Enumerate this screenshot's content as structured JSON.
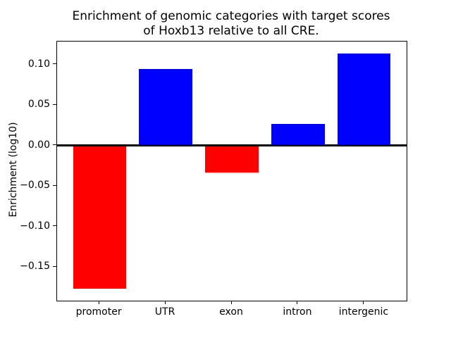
{
  "figure": {
    "title_lines": [
      "Enrichment of genomic categories with target scores",
      "of Hoxb13 relative to all CRE."
    ],
    "ylabel": "Enrichment (log10)"
  },
  "chart_data": {
    "type": "bar",
    "title": "Enrichment of genomic categories with target scores\nof Hoxb13 relative to all CRE.",
    "xlabel": "",
    "ylabel": "Enrichment (log10)",
    "categories": [
      "promoter",
      "UTR",
      "exon",
      "intron",
      "intergenic"
    ],
    "values": [
      -0.177,
      0.095,
      -0.033,
      0.027,
      0.114
    ],
    "bar_colors": [
      "#ff0000",
      "#0000ff",
      "#ff0000",
      "#0000ff",
      "#0000ff"
    ],
    "positive_color": "#0000ff",
    "negative_color": "#ff0000",
    "yticks": [
      {
        "value": 0.1,
        "label": "0.10"
      },
      {
        "value": 0.05,
        "label": "0.05"
      },
      {
        "value": 0.0,
        "label": "0.00"
      },
      {
        "value": -0.05,
        "label": "−0.05"
      },
      {
        "value": -0.1,
        "label": "−0.10"
      },
      {
        "value": -0.15,
        "label": "−0.15"
      }
    ],
    "ylim": [
      -0.1916,
      0.1286
    ],
    "xlim": [
      -0.64,
      4.64
    ],
    "bar_width": 0.8,
    "zero_line": true,
    "grid": false,
    "legend": null,
    "text_color": "#000000",
    "background": "#ffffff",
    "frame": true
  }
}
